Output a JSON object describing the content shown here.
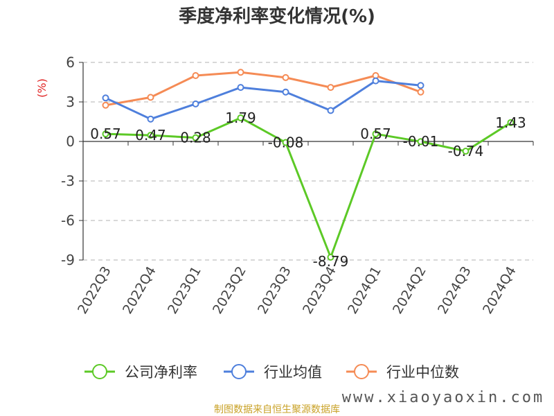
{
  "chart_data": {
    "type": "line",
    "title": "季度净利率变化情况(%)",
    "ylabel": "(%)",
    "categories": [
      "2022Q3",
      "2022Q4",
      "2023Q1",
      "2023Q2",
      "2023Q3",
      "2023Q4",
      "2024Q1",
      "2024Q2",
      "2024Q3",
      "2024Q4"
    ],
    "ylim": [
      -9,
      6
    ],
    "yticks": [
      6,
      3,
      0,
      -3,
      -6,
      -9
    ],
    "grid": true,
    "legend_position": "bottom",
    "series": [
      {
        "name": "公司净利率",
        "color": "#5cc926",
        "values": [
          0.57,
          0.47,
          0.28,
          1.79,
          -0.08,
          -8.79,
          0.57,
          -0.01,
          -0.74,
          1.43
        ],
        "labels": [
          "0.57",
          "0.47",
          "0.28",
          "1.79",
          "-0.08",
          "-8.79",
          "0.57",
          "-0.01",
          "-0.74",
          "1.43"
        ]
      },
      {
        "name": "行业均值",
        "color": "#4e7fdc",
        "values": [
          3.3,
          1.7,
          2.85,
          4.1,
          3.75,
          2.35,
          4.6,
          4.25,
          null,
          null
        ]
      },
      {
        "name": "行业中位数",
        "color": "#f58b55",
        "values": [
          2.75,
          3.35,
          5.0,
          5.25,
          4.85,
          4.1,
          5.0,
          3.75,
          null,
          null
        ]
      }
    ]
  },
  "footer": "制图数据来自恒生聚源数据库",
  "watermark": "www.xiaoyaoxin.com"
}
